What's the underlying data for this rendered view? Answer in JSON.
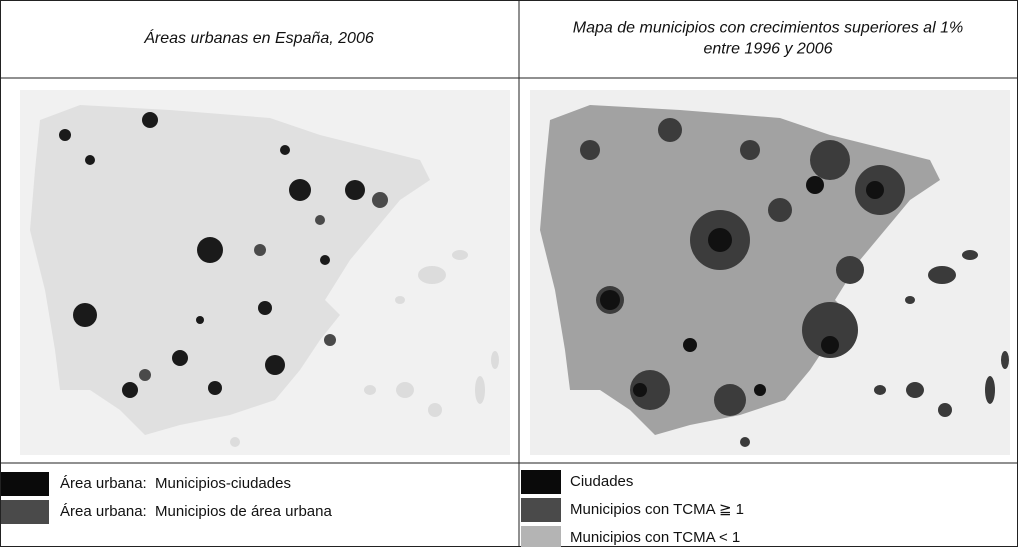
{
  "panels": [
    {
      "title_lines": [
        "Áreas urbanas en España, 2006"
      ],
      "legend": [
        {
          "label": "Área urbana:  Municipios-ciudades",
          "color": "#0a0a0a"
        },
        {
          "label": "Área urbana:  Municipios de área urbana",
          "color": "#4a4a4a"
        }
      ]
    },
    {
      "title_lines": [
        "Mapa de municipios con crecimientos superiores al 1%",
        "entre 1996 y 2006"
      ],
      "legend": [
        {
          "label": "Ciudades",
          "color": "#0a0a0a"
        },
        {
          "label": "Municipios con TCMA ≧ 1",
          "color": "#4a4a4a"
        },
        {
          "label": "Municipios con TCMA < 1",
          "color": "#b4b4b4"
        }
      ]
    }
  ]
}
